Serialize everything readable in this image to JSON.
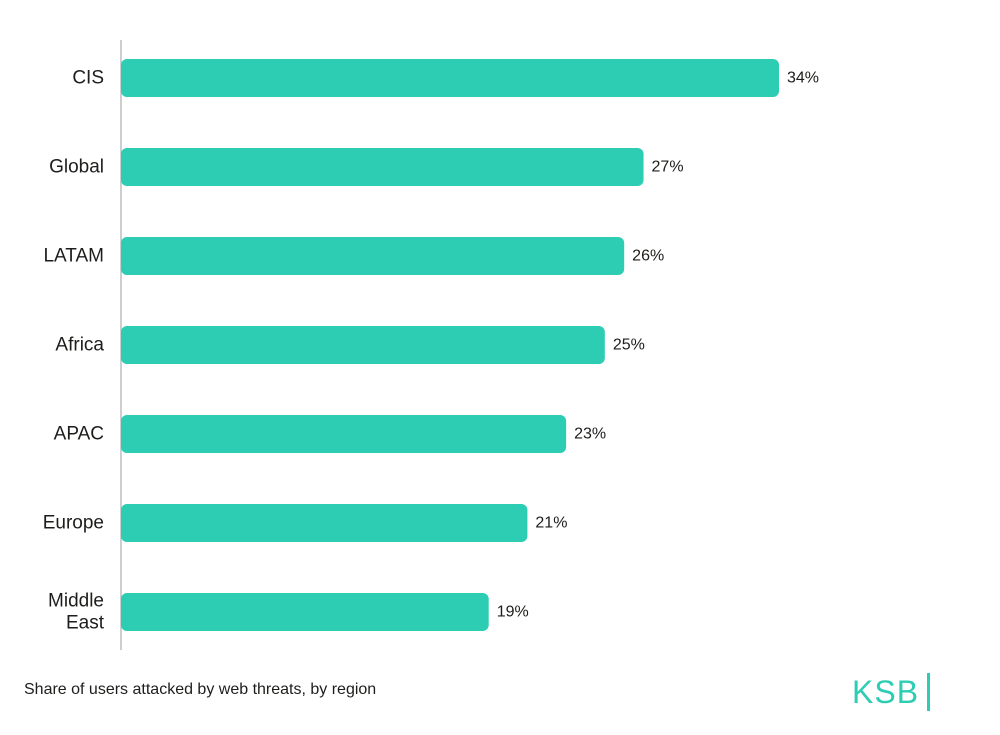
{
  "chart_data": {
    "type": "bar",
    "orientation": "horizontal",
    "categories": [
      "CIS",
      "Global",
      "LATAM",
      "Africa",
      "APAC",
      "Europe",
      "Middle East"
    ],
    "category_lines": [
      [
        "CIS"
      ],
      [
        "Global"
      ],
      [
        "LATAM"
      ],
      [
        "Africa"
      ],
      [
        "APAC"
      ],
      [
        "Europe"
      ],
      [
        "Middle",
        "East"
      ]
    ],
    "values": [
      34,
      27,
      26,
      25,
      23,
      21,
      19
    ],
    "value_labels": [
      "34%",
      "27%",
      "26%",
      "25%",
      "23%",
      "21%",
      "19%"
    ],
    "xlim": [
      0,
      34
    ],
    "grid": false,
    "bar_color": "#2ccdb3",
    "axis_color": "#bdbdbd"
  },
  "caption": "Share of users attacked by web threats, by region",
  "logo": {
    "text": "KSB",
    "color": "#2ccdb3"
  }
}
